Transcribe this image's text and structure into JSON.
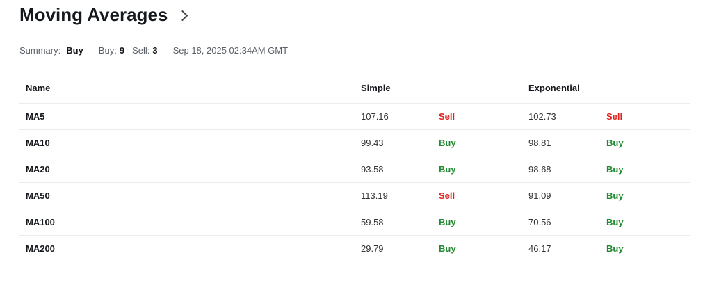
{
  "header": {
    "title": "Moving Averages"
  },
  "summary": {
    "summary_label": "Summary:",
    "summary_value": "Buy",
    "buy_label": "Buy:",
    "buy_count": "9",
    "sell_label": "Sell:",
    "sell_count": "3",
    "timestamp": "Sep 18, 2025 02:34AM GMT"
  },
  "table": {
    "columns": {
      "name": "Name",
      "simple": "Simple",
      "exponential": "Exponential"
    },
    "rows": [
      {
        "name": "MA5",
        "simple": "107.16",
        "simple_signal": "Sell",
        "exp": "102.73",
        "exp_signal": "Sell"
      },
      {
        "name": "MA10",
        "simple": "99.43",
        "simple_signal": "Buy",
        "exp": "98.81",
        "exp_signal": "Buy"
      },
      {
        "name": "MA20",
        "simple": "93.58",
        "simple_signal": "Buy",
        "exp": "98.68",
        "exp_signal": "Buy"
      },
      {
        "name": "MA50",
        "simple": "113.19",
        "simple_signal": "Sell",
        "exp": "91.09",
        "exp_signal": "Buy"
      },
      {
        "name": "MA100",
        "simple": "59.58",
        "simple_signal": "Buy",
        "exp": "70.56",
        "exp_signal": "Buy"
      },
      {
        "name": "MA200",
        "simple": "29.79",
        "simple_signal": "Buy",
        "exp": "46.17",
        "exp_signal": "Buy"
      }
    ]
  },
  "colors": {
    "sell": "#e0231c",
    "buy": "#1f8a2e"
  }
}
